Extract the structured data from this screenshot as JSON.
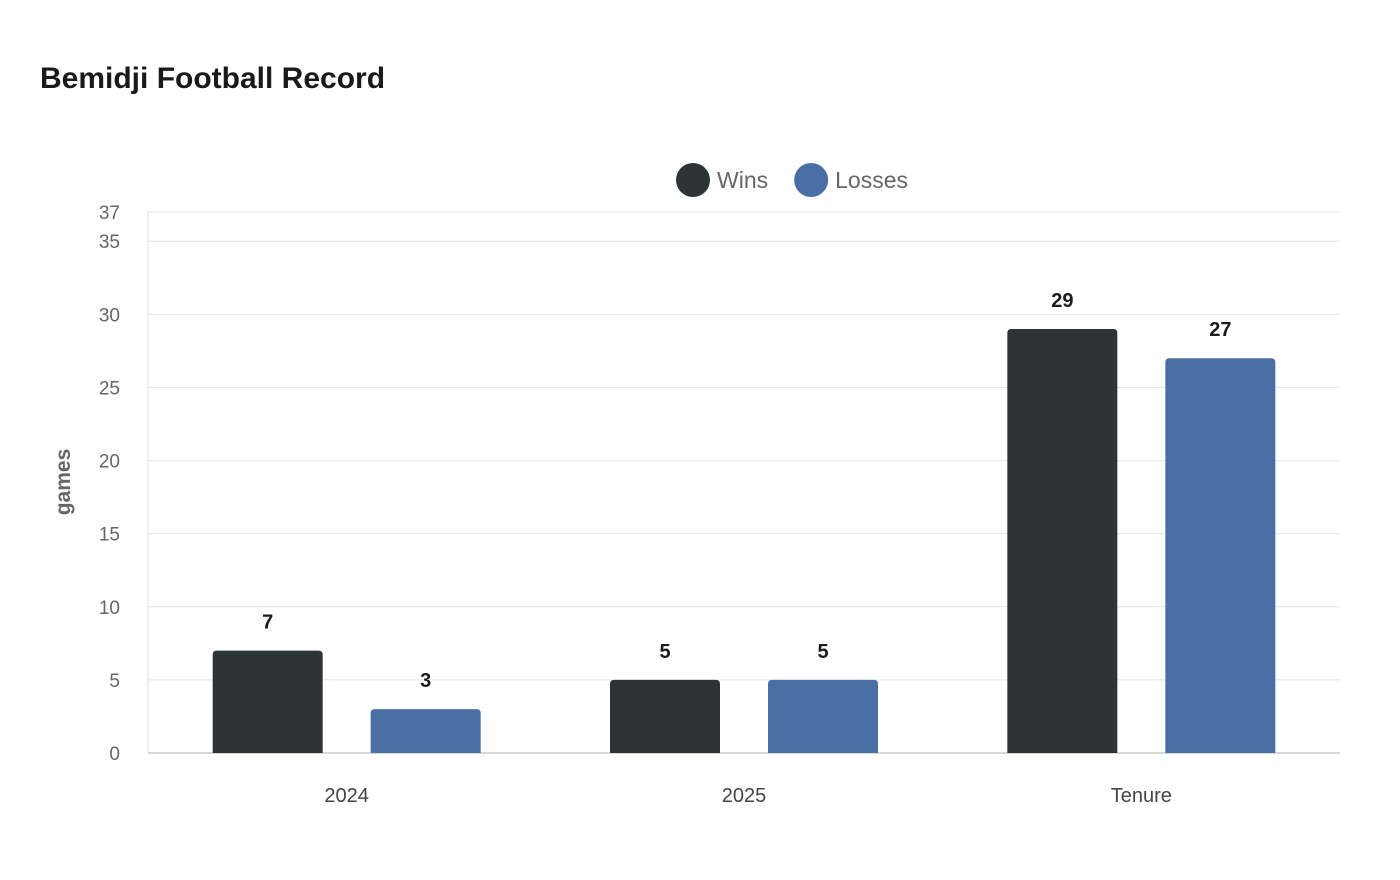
{
  "chart_data": {
    "type": "bar",
    "title": "Bemidji Football Record",
    "xlabel": "",
    "ylabel": "games",
    "categories": [
      "2024",
      "2025",
      "Tenure"
    ],
    "series": [
      {
        "name": "Wins",
        "values": [
          7,
          5,
          29
        ],
        "color": "#2d3436"
      },
      {
        "name": "Losses",
        "values": [
          3,
          5,
          27
        ],
        "color": "#4a6fa5"
      }
    ],
    "ylim": [
      0,
      37
    ],
    "yticks": [
      0,
      5,
      10,
      15,
      20,
      25,
      30,
      35,
      37
    ],
    "grid": true,
    "legend": "top-center",
    "data_labels": true
  }
}
